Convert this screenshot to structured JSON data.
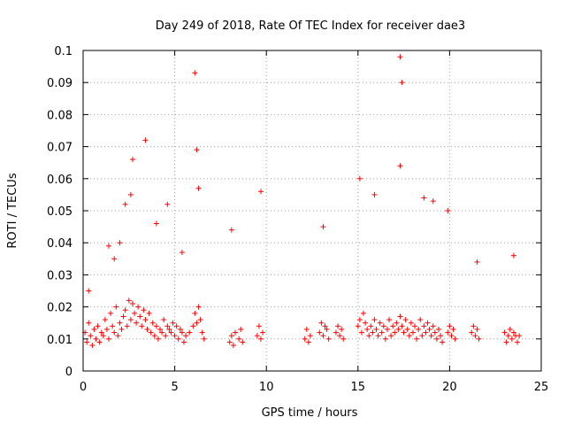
{
  "chart_data": {
    "type": "scatter",
    "title": "Day 249 of 2018, Rate Of TEC Index for receiver dae3",
    "xlabel": "GPS time / hours",
    "ylabel": "ROTI / TECUs",
    "xlim": [
      0,
      25
    ],
    "ylim": [
      0,
      0.1
    ],
    "xticks": [
      0,
      5,
      10,
      15,
      20,
      25
    ],
    "yticks": [
      0,
      0.01,
      0.02,
      0.03,
      0.04,
      0.05,
      0.06,
      0.07,
      0.08,
      0.09,
      0.1
    ],
    "grid": true,
    "marker": "+",
    "color": "#ff0000",
    "series": [
      {
        "x": [
          0.1,
          0.2,
          0.3,
          0.4,
          0.5,
          0.6,
          0.7,
          0.8,
          0.9,
          1.0,
          1.1,
          1.2,
          1.3,
          1.4,
          1.5,
          1.6,
          1.7,
          1.8,
          1.9,
          2.0,
          2.1,
          2.2,
          2.3,
          2.4,
          2.5,
          2.6,
          2.7,
          2.8,
          2.9,
          3.0,
          3.1,
          3.2,
          3.3,
          3.4,
          3.5,
          3.6,
          3.7,
          3.8,
          3.9,
          4.0,
          4.1,
          4.2,
          4.3,
          4.4,
          4.5,
          4.6,
          4.7,
          4.8,
          4.9,
          5.0,
          5.1,
          5.2,
          5.3,
          5.4,
          5.5,
          5.6,
          5.8,
          6.0,
          6.1,
          6.2,
          6.3,
          6.4,
          6.5,
          6.6,
          8.0,
          8.1,
          8.2,
          8.3,
          8.5,
          8.6,
          8.7,
          9.5,
          9.6,
          9.7,
          9.8,
          12.1,
          12.2,
          12.3,
          12.4,
          12.9,
          13.0,
          13.1,
          13.2,
          13.3,
          13.4,
          13.8,
          13.9,
          14.0,
          14.1,
          14.2,
          15.0,
          15.1,
          15.2,
          15.3,
          15.4,
          15.5,
          15.6,
          15.7,
          15.8,
          15.9,
          16.0,
          16.1,
          16.2,
          16.3,
          16.4,
          16.5,
          16.6,
          16.7,
          16.8,
          16.9,
          17.0,
          17.1,
          17.2,
          17.3,
          17.4,
          17.5,
          17.6,
          17.7,
          17.8,
          17.9,
          18.0,
          18.1,
          18.2,
          18.3,
          18.4,
          18.5,
          18.6,
          18.7,
          18.8,
          18.9,
          19.0,
          19.1,
          19.2,
          19.3,
          19.4,
          19.5,
          19.6,
          19.9,
          20.0,
          20.1,
          20.2,
          20.3,
          21.2,
          21.3,
          21.4,
          21.5,
          21.6,
          23.0,
          23.1,
          23.2,
          23.3,
          23.4,
          23.5,
          23.6,
          23.7,
          23.8,
          0.3,
          1.4,
          1.7,
          2.0,
          2.3,
          2.6,
          2.7,
          3.4,
          4.0,
          4.6,
          5.4,
          6.1,
          6.2,
          6.3,
          8.1,
          9.7,
          13.1,
          15.1,
          15.9,
          17.3,
          17.4,
          17.3,
          18.6,
          19.1,
          19.9,
          21.5,
          23.5
        ],
        "y": [
          0.012,
          0.009,
          0.015,
          0.011,
          0.008,
          0.013,
          0.01,
          0.014,
          0.009,
          0.012,
          0.011,
          0.016,
          0.013,
          0.01,
          0.018,
          0.014,
          0.012,
          0.02,
          0.011,
          0.015,
          0.013,
          0.017,
          0.019,
          0.014,
          0.022,
          0.016,
          0.021,
          0.018,
          0.015,
          0.02,
          0.017,
          0.014,
          0.019,
          0.016,
          0.013,
          0.018,
          0.012,
          0.015,
          0.011,
          0.014,
          0.01,
          0.013,
          0.012,
          0.016,
          0.011,
          0.014,
          0.013,
          0.012,
          0.015,
          0.011,
          0.014,
          0.01,
          0.013,
          0.012,
          0.009,
          0.011,
          0.012,
          0.014,
          0.018,
          0.015,
          0.02,
          0.016,
          0.012,
          0.01,
          0.009,
          0.011,
          0.008,
          0.012,
          0.01,
          0.013,
          0.009,
          0.011,
          0.014,
          0.01,
          0.012,
          0.01,
          0.013,
          0.009,
          0.011,
          0.012,
          0.015,
          0.011,
          0.014,
          0.013,
          0.01,
          0.012,
          0.014,
          0.011,
          0.013,
          0.01,
          0.014,
          0.016,
          0.012,
          0.018,
          0.015,
          0.013,
          0.011,
          0.014,
          0.012,
          0.016,
          0.013,
          0.011,
          0.015,
          0.012,
          0.014,
          0.01,
          0.013,
          0.016,
          0.011,
          0.014,
          0.012,
          0.015,
          0.013,
          0.017,
          0.014,
          0.012,
          0.016,
          0.013,
          0.011,
          0.015,
          0.012,
          0.014,
          0.01,
          0.013,
          0.016,
          0.011,
          0.014,
          0.012,
          0.015,
          0.013,
          0.011,
          0.014,
          0.012,
          0.01,
          0.013,
          0.011,
          0.009,
          0.012,
          0.014,
          0.011,
          0.013,
          0.01,
          0.012,
          0.014,
          0.011,
          0.013,
          0.01,
          0.012,
          0.009,
          0.011,
          0.013,
          0.01,
          0.012,
          0.011,
          0.009,
          0.011,
          0.025,
          0.039,
          0.035,
          0.04,
          0.052,
          0.055,
          0.066,
          0.072,
          0.046,
          0.052,
          0.037,
          0.093,
          0.069,
          0.057,
          0.044,
          0.056,
          0.045,
          0.06,
          0.055,
          0.098,
          0.09,
          0.064,
          0.054,
          0.053,
          0.05,
          0.034,
          0.036
        ]
      }
    ]
  }
}
